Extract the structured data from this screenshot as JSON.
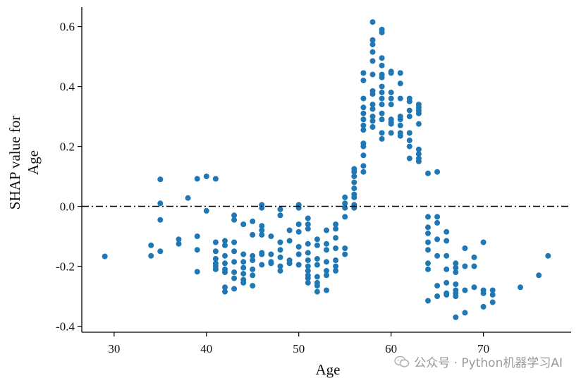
{
  "chart_data": {
    "type": "scatter",
    "xlabel": "Age",
    "ylabel_lines": [
      "SHAP value for",
      "Age"
    ],
    "xlim": [
      26.5,
      79.5
    ],
    "ylim": [
      -0.42,
      0.665
    ],
    "xticks": [
      30,
      40,
      50,
      60,
      70
    ],
    "yticks": [
      -0.4,
      -0.2,
      0.0,
      0.2,
      0.4,
      0.6
    ],
    "ytick_labels": [
      "-0.4",
      "-0.2",
      "0.0",
      "0.2",
      "0.4",
      "0.6"
    ],
    "reference_line": {
      "y": 0.0,
      "style": "dash-dot",
      "color": "#000000"
    },
    "point_color": "#1f77b4",
    "grid": false,
    "points": [
      [
        29,
        -0.167
      ],
      [
        34,
        -0.13
      ],
      [
        34,
        -0.165
      ],
      [
        35,
        0.09
      ],
      [
        35,
        0.01
      ],
      [
        35,
        -0.045
      ],
      [
        35,
        -0.15
      ],
      [
        37,
        -0.11
      ],
      [
        37,
        -0.125
      ],
      [
        38,
        0.028
      ],
      [
        39,
        0.092
      ],
      [
        39,
        -0.1
      ],
      [
        39,
        -0.145
      ],
      [
        39,
        -0.218
      ],
      [
        40,
        0.1
      ],
      [
        40,
        -0.015
      ],
      [
        41,
        0.092
      ],
      [
        41,
        -0.12
      ],
      [
        41,
        -0.15
      ],
      [
        41,
        -0.175
      ],
      [
        41,
        -0.19
      ],
      [
        41,
        -0.2
      ],
      [
        41,
        -0.21
      ],
      [
        42,
        -0.115
      ],
      [
        42,
        -0.13
      ],
      [
        42,
        -0.165
      ],
      [
        42,
        -0.19
      ],
      [
        42,
        -0.21
      ],
      [
        42,
        -0.22
      ],
      [
        42,
        -0.27
      ],
      [
        42,
        -0.285
      ],
      [
        43,
        -0.03
      ],
      [
        43,
        -0.045
      ],
      [
        43,
        -0.12
      ],
      [
        43,
        -0.15
      ],
      [
        43,
        -0.185
      ],
      [
        43,
        -0.22
      ],
      [
        43,
        -0.24
      ],
      [
        43,
        -0.275
      ],
      [
        44,
        -0.06
      ],
      [
        44,
        -0.16
      ],
      [
        44,
        -0.185
      ],
      [
        44,
        -0.205
      ],
      [
        44,
        -0.225
      ],
      [
        44,
        -0.245
      ],
      [
        44,
        -0.255
      ],
      [
        45,
        -0.05
      ],
      [
        45,
        -0.095
      ],
      [
        45,
        -0.165
      ],
      [
        45,
        -0.18
      ],
      [
        45,
        -0.21
      ],
      [
        45,
        -0.23
      ],
      [
        45,
        -0.265
      ],
      [
        46,
        0.005
      ],
      [
        46,
        -0.005
      ],
      [
        46,
        -0.065
      ],
      [
        46,
        -0.08
      ],
      [
        46,
        -0.095
      ],
      [
        46,
        -0.155
      ],
      [
        46,
        -0.16
      ],
      [
        46,
        -0.195
      ],
      [
        47,
        -0.1
      ],
      [
        47,
        -0.16
      ],
      [
        47,
        -0.185
      ],
      [
        47,
        -0.19
      ],
      [
        48,
        -0.01
      ],
      [
        48,
        -0.03
      ],
      [
        48,
        -0.12
      ],
      [
        48,
        -0.145
      ],
      [
        48,
        -0.17
      ],
      [
        48,
        -0.2
      ],
      [
        48,
        -0.215
      ],
      [
        49,
        -0.08
      ],
      [
        49,
        -0.115
      ],
      [
        49,
        -0.18
      ],
      [
        49,
        -0.19
      ],
      [
        50,
        0.005
      ],
      [
        50,
        -0.005
      ],
      [
        50,
        -0.06
      ],
      [
        50,
        -0.085
      ],
      [
        50,
        -0.135
      ],
      [
        50,
        -0.16
      ],
      [
        50,
        -0.195
      ],
      [
        51,
        -0.04
      ],
      [
        51,
        -0.06
      ],
      [
        51,
        -0.075
      ],
      [
        51,
        -0.125
      ],
      [
        51,
        -0.155
      ],
      [
        51,
        -0.18
      ],
      [
        51,
        -0.2
      ],
      [
        51,
        -0.215
      ],
      [
        51,
        -0.23
      ],
      [
        51,
        -0.24
      ],
      [
        51,
        -0.255
      ],
      [
        52,
        -0.11
      ],
      [
        52,
        -0.13
      ],
      [
        52,
        -0.175
      ],
      [
        52,
        -0.195
      ],
      [
        52,
        -0.235
      ],
      [
        52,
        -0.255
      ],
      [
        52,
        -0.265
      ],
      [
        52,
        -0.285
      ],
      [
        53,
        -0.08
      ],
      [
        53,
        -0.125
      ],
      [
        53,
        -0.145
      ],
      [
        53,
        -0.185
      ],
      [
        53,
        -0.215
      ],
      [
        53,
        -0.23
      ],
      [
        53,
        -0.28
      ],
      [
        54,
        -0.06
      ],
      [
        54,
        -0.075
      ],
      [
        54,
        -0.105
      ],
      [
        54,
        -0.14
      ],
      [
        54,
        -0.18
      ],
      [
        54,
        -0.2
      ],
      [
        54,
        -0.215
      ],
      [
        55,
        0.03
      ],
      [
        55,
        0.01
      ],
      [
        55,
        -0.005
      ],
      [
        55,
        -0.035
      ],
      [
        55,
        -0.14
      ],
      [
        55,
        -0.16
      ],
      [
        56,
        0.125
      ],
      [
        56,
        0.115
      ],
      [
        56,
        0.1
      ],
      [
        56,
        0.08
      ],
      [
        56,
        0.06
      ],
      [
        56,
        0.04
      ],
      [
        56,
        0.03
      ],
      [
        56,
        0.005
      ],
      [
        56,
        -0.005
      ],
      [
        57,
        0.445
      ],
      [
        57,
        0.42
      ],
      [
        57,
        0.36
      ],
      [
        57,
        0.33
      ],
      [
        57,
        0.31
      ],
      [
        57,
        0.29
      ],
      [
        57,
        0.27
      ],
      [
        57,
        0.255
      ],
      [
        57,
        0.21
      ],
      [
        57,
        0.2
      ],
      [
        57,
        0.17
      ],
      [
        57,
        0.135
      ],
      [
        57,
        0.115
      ],
      [
        58,
        0.615
      ],
      [
        58,
        0.555
      ],
      [
        58,
        0.54
      ],
      [
        58,
        0.515
      ],
      [
        58,
        0.485
      ],
      [
        58,
        0.44
      ],
      [
        58,
        0.385
      ],
      [
        58,
        0.375
      ],
      [
        58,
        0.34
      ],
      [
        58,
        0.325
      ],
      [
        58,
        0.3
      ],
      [
        58,
        0.285
      ],
      [
        58,
        0.265
      ],
      [
        59,
        0.59
      ],
      [
        59,
        0.58
      ],
      [
        59,
        0.495
      ],
      [
        59,
        0.47
      ],
      [
        59,
        0.44
      ],
      [
        59,
        0.43
      ],
      [
        59,
        0.4
      ],
      [
        59,
        0.38
      ],
      [
        59,
        0.36
      ],
      [
        59,
        0.34
      ],
      [
        59,
        0.31
      ],
      [
        59,
        0.29
      ],
      [
        59,
        0.245
      ],
      [
        59,
        0.225
      ],
      [
        60,
        0.45
      ],
      [
        60,
        0.445
      ],
      [
        60,
        0.38
      ],
      [
        60,
        0.36
      ],
      [
        60,
        0.34
      ],
      [
        60,
        0.29
      ],
      [
        60,
        0.28
      ],
      [
        60,
        0.275
      ],
      [
        60,
        0.245
      ],
      [
        61,
        0.445
      ],
      [
        61,
        0.41
      ],
      [
        61,
        0.36
      ],
      [
        61,
        0.3
      ],
      [
        61,
        0.29
      ],
      [
        61,
        0.27
      ],
      [
        61,
        0.245
      ],
      [
        61,
        0.235
      ],
      [
        62,
        0.36
      ],
      [
        62,
        0.35
      ],
      [
        62,
        0.32
      ],
      [
        62,
        0.3
      ],
      [
        62,
        0.245
      ],
      [
        62,
        0.22
      ],
      [
        62,
        0.2
      ],
      [
        62,
        0.16
      ],
      [
        63,
        0.34
      ],
      [
        63,
        0.33
      ],
      [
        63,
        0.32
      ],
      [
        63,
        0.31
      ],
      [
        63,
        0.275
      ],
      [
        63,
        0.19
      ],
      [
        63,
        0.175
      ],
      [
        63,
        0.16
      ],
      [
        63,
        0.15
      ],
      [
        64,
        0.11
      ],
      [
        64,
        -0.035
      ],
      [
        64,
        -0.07
      ],
      [
        64,
        -0.09
      ],
      [
        64,
        -0.12
      ],
      [
        64,
        -0.145
      ],
      [
        64,
        -0.19
      ],
      [
        64,
        -0.21
      ],
      [
        64,
        -0.315
      ],
      [
        65,
        0.115
      ],
      [
        65,
        -0.035
      ],
      [
        65,
        -0.055
      ],
      [
        65,
        -0.11
      ],
      [
        65,
        -0.165
      ],
      [
        65,
        -0.265
      ],
      [
        65,
        -0.3
      ],
      [
        66,
        -0.085
      ],
      [
        66,
        -0.115
      ],
      [
        66,
        -0.165
      ],
      [
        66,
        -0.21
      ],
      [
        66,
        -0.255
      ],
      [
        66,
        -0.29
      ],
      [
        66,
        -0.295
      ],
      [
        67,
        -0.19
      ],
      [
        67,
        -0.205
      ],
      [
        67,
        -0.22
      ],
      [
        67,
        -0.26
      ],
      [
        67,
        -0.28
      ],
      [
        67,
        -0.29
      ],
      [
        67,
        -0.3
      ],
      [
        67,
        -0.37
      ],
      [
        68,
        -0.14
      ],
      [
        68,
        -0.2
      ],
      [
        68,
        -0.28
      ],
      [
        68,
        -0.355
      ],
      [
        69,
        -0.17
      ],
      [
        69,
        -0.2
      ],
      [
        69,
        -0.27
      ],
      [
        70,
        -0.12
      ],
      [
        70,
        -0.28
      ],
      [
        70,
        -0.29
      ],
      [
        70,
        -0.335
      ],
      [
        71,
        -0.28
      ],
      [
        71,
        -0.295
      ],
      [
        71,
        -0.32
      ],
      [
        74,
        -0.27
      ],
      [
        76,
        -0.23
      ],
      [
        77,
        -0.165
      ]
    ]
  },
  "watermark": {
    "icon": "wechat-icon",
    "text": "公众号 · Python机器学习AI",
    "color": "#9a9a9a"
  }
}
